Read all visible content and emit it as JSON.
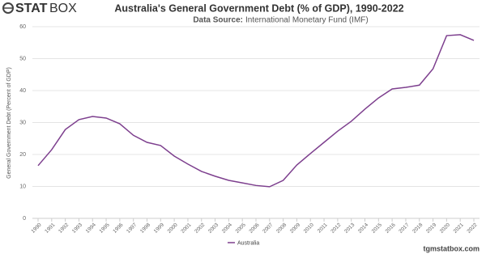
{
  "brand": {
    "bold": "STAT",
    "light": "BOX"
  },
  "footer": "tgmstatbox.com",
  "chart_data": {
    "type": "line",
    "title": "Australia's General Government Debt (% of GDP), 1990-2022",
    "source_label": "Data Source:",
    "source": "International Monetary Fund (IMF)",
    "y_label": "General Government Debt (Percent of GDP)",
    "categories": [
      "1990",
      "1991",
      "1992",
      "1993",
      "1994",
      "1995",
      "1996",
      "1997",
      "1998",
      "1999",
      "2000",
      "2001",
      "2002",
      "2003",
      "2004",
      "2005",
      "2006",
      "2007",
      "2008",
      "2009",
      "2010",
      "2011",
      "2012",
      "2013",
      "2014",
      "2015",
      "2016",
      "2017",
      "2018",
      "2019",
      "2020",
      "2021",
      "2022"
    ],
    "series": [
      {
        "name": "Australia",
        "color": "#7d3f8e",
        "values": [
          16.5,
          21.5,
          27.8,
          30.9,
          31.9,
          31.4,
          29.6,
          26,
          23.8,
          22.8,
          19.5,
          17,
          14.7,
          13.2,
          11.9,
          11.1,
          10.3,
          9.9,
          11.9,
          16.7,
          20.3,
          23.8,
          27.3,
          30.4,
          34.2,
          37.7,
          40.5,
          41,
          41.7,
          46.8,
          57.2,
          57.5,
          55.7
        ]
      }
    ],
    "ylim": [
      0,
      60
    ],
    "yticks": [
      0,
      10,
      20,
      30,
      40,
      50,
      60
    ],
    "grid": true,
    "legend": "bottom"
  }
}
